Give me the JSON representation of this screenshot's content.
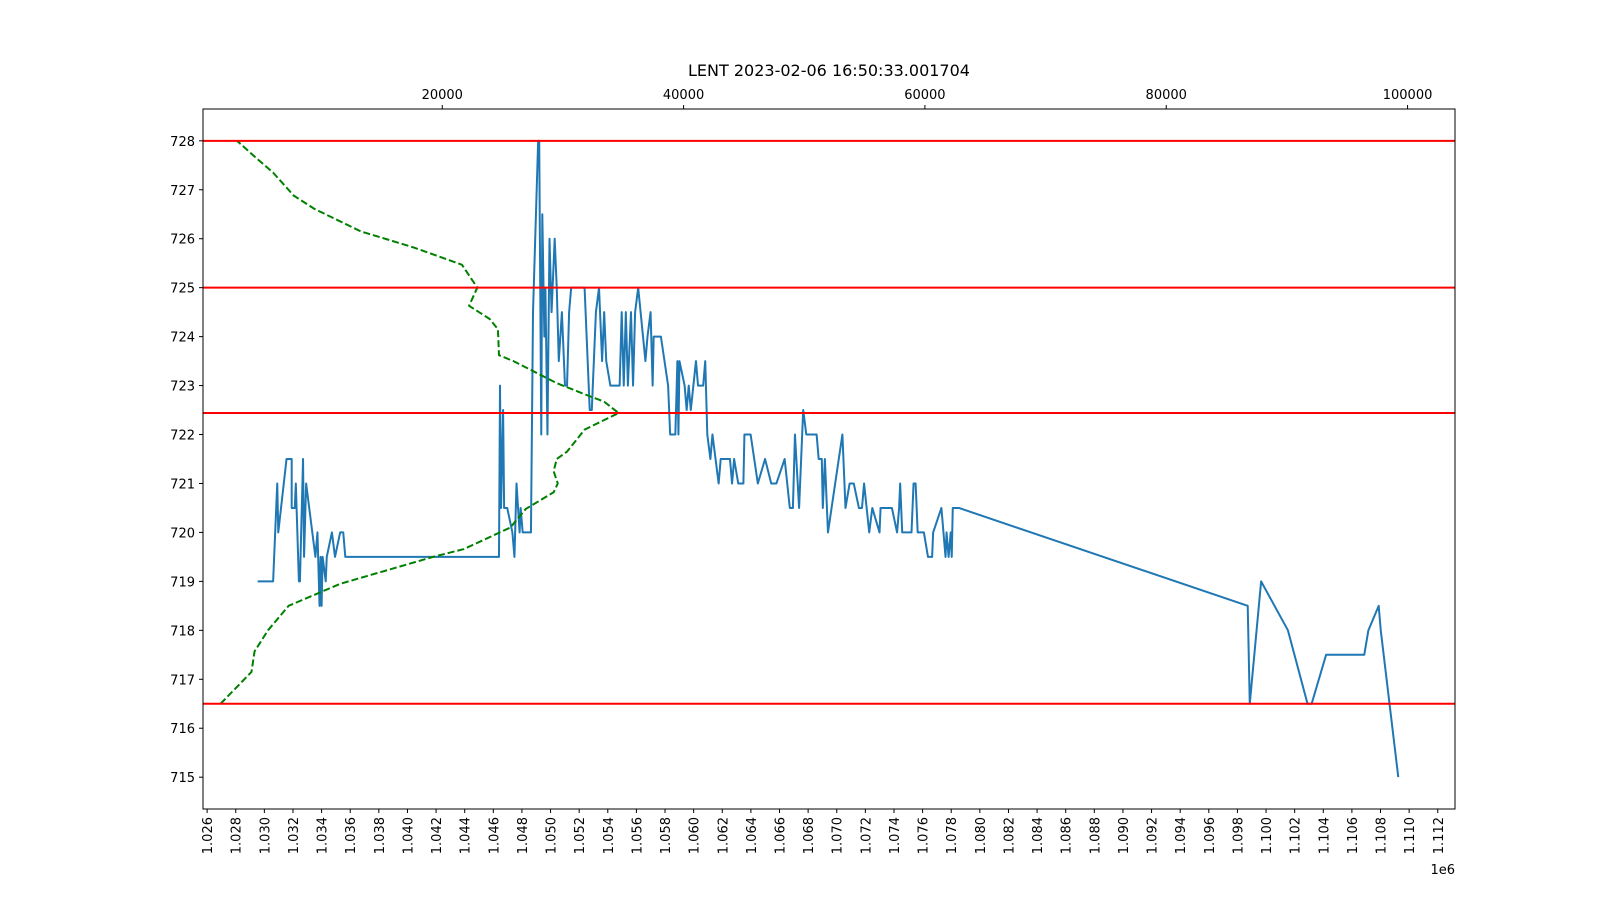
{
  "chart_data": {
    "type": "line",
    "title": "LENT 2023-02-06 16:50:33.001704",
    "x_offset_label": "1e6",
    "xlim": [
      1025712,
      1113205
    ],
    "xticks": [
      {
        "value": 1026000,
        "label": "1.026"
      },
      {
        "value": 1028000,
        "label": "1.028"
      },
      {
        "value": 1030000,
        "label": "1.030"
      },
      {
        "value": 1032000,
        "label": "1.032"
      },
      {
        "value": 1034000,
        "label": "1.034"
      },
      {
        "value": 1036000,
        "label": "1.036"
      },
      {
        "value": 1038000,
        "label": "1.038"
      },
      {
        "value": 1040000,
        "label": "1.040"
      },
      {
        "value": 1042000,
        "label": "1.042"
      },
      {
        "value": 1044000,
        "label": "1.044"
      },
      {
        "value": 1046000,
        "label": "1.046"
      },
      {
        "value": 1048000,
        "label": "1.048"
      },
      {
        "value": 1050000,
        "label": "1.050"
      },
      {
        "value": 1052000,
        "label": "1.052"
      },
      {
        "value": 1054000,
        "label": "1.054"
      },
      {
        "value": 1056000,
        "label": "1.056"
      },
      {
        "value": 1058000,
        "label": "1.058"
      },
      {
        "value": 1060000,
        "label": "1.060"
      },
      {
        "value": 1062000,
        "label": "1.062"
      },
      {
        "value": 1064000,
        "label": "1.064"
      },
      {
        "value": 1066000,
        "label": "1.066"
      },
      {
        "value": 1068000,
        "label": "1.068"
      },
      {
        "value": 1070000,
        "label": "1.070"
      },
      {
        "value": 1072000,
        "label": "1.072"
      },
      {
        "value": 1074000,
        "label": "1.074"
      },
      {
        "value": 1076000,
        "label": "1.076"
      },
      {
        "value": 1078000,
        "label": "1.078"
      },
      {
        "value": 1080000,
        "label": "1.080"
      },
      {
        "value": 1082000,
        "label": "1.082"
      },
      {
        "value": 1084000,
        "label": "1.084"
      },
      {
        "value": 1086000,
        "label": "1.086"
      },
      {
        "value": 1088000,
        "label": "1.088"
      },
      {
        "value": 1090000,
        "label": "1.090"
      },
      {
        "value": 1092000,
        "label": "1.092"
      },
      {
        "value": 1094000,
        "label": "1.094"
      },
      {
        "value": 1096000,
        "label": "1.096"
      },
      {
        "value": 1098000,
        "label": "1.098"
      },
      {
        "value": 1100000,
        "label": "1.100"
      },
      {
        "value": 1102000,
        "label": "1.102"
      },
      {
        "value": 1104000,
        "label": "1.104"
      },
      {
        "value": 1106000,
        "label": "1.106"
      },
      {
        "value": 1108000,
        "label": "1.108"
      },
      {
        "value": 1110000,
        "label": "1.110"
      },
      {
        "value": 1112000,
        "label": "1.112"
      }
    ],
    "x2lim": [
      171,
      103932
    ],
    "x2ticks": [
      20000,
      40000,
      60000,
      80000,
      100000
    ],
    "ylim": [
      714.35,
      728.65
    ],
    "yticks": [
      715,
      716,
      717,
      718,
      719,
      720,
      721,
      722,
      723,
      724,
      725,
      726,
      727,
      728
    ],
    "hlines": {
      "color": "#ff0000",
      "values": [
        728,
        725,
        722.44,
        716.5
      ]
    },
    "series": [
      {
        "color": "#1f77b4",
        "x": [
          1029531,
          1030612,
          1030901,
          1030973,
          1031549,
          1031910,
          1031910,
          1032126,
          1032198,
          1032414,
          1032486,
          1032703,
          1032775,
          1032919,
          1033567,
          1033711,
          1033856,
          1033928,
          1034000,
          1034072,
          1034288,
          1034360,
          1034720,
          1034937,
          1035297,
          1035513,
          1035657,
          1046396,
          1046468,
          1046540,
          1046684,
          1046756,
          1046972,
          1047333,
          1047477,
          1047621,
          1047837,
          1047909,
          1048053,
          1048630,
          1048774,
          1049134,
          1049207,
          1049351,
          1049423,
          1049567,
          1049639,
          1049783,
          1049927,
          1050071,
          1050288,
          1050432,
          1050576,
          1050792,
          1051008,
          1051152,
          1051297,
          1051441,
          1052378,
          1052594,
          1052738,
          1052882,
          1053170,
          1053387,
          1053603,
          1053747,
          1053891,
          1054179,
          1054828,
          1054972,
          1055116,
          1055260,
          1055405,
          1055621,
          1055765,
          1055909,
          1056125,
          1056630,
          1056774,
          1056990,
          1057134,
          1057206,
          1057711,
          1058215,
          1058359,
          1058720,
          1058864,
          1058936,
          1059008,
          1059368,
          1059513,
          1059657,
          1059801,
          1060161,
          1060305,
          1060666,
          1060810,
          1060954,
          1061170,
          1061314,
          1061747,
          1061891,
          1062539,
          1062684,
          1062828,
          1063116,
          1063476,
          1063548,
          1063981,
          1064485,
          1064990,
          1065422,
          1065783,
          1066359,
          1066720,
          1066936,
          1067080,
          1067368,
          1067656,
          1067873,
          1068593,
          1068738,
          1068954,
          1069026,
          1069170,
          1069386,
          1070395,
          1070611,
          1070900,
          1071188,
          1071548,
          1071764,
          1071909,
          1072269,
          1072485,
          1072990,
          1073062,
          1073854,
          1074215,
          1074359,
          1074431,
          1074575,
          1075224,
          1075368,
          1075512,
          1075656,
          1076089,
          1076377,
          1076665,
          1076737,
          1077314,
          1077602,
          1077674,
          1077818,
          1077962,
          1078035,
          1078107,
          1078539,
          1098719,
          1098863,
          1099656,
          1101529,
          1102899,
          1103187,
          1104196,
          1106863,
          1107151,
          1107872,
          1108016,
          1109241
        ],
        "values": [
          719,
          719,
          721,
          720,
          721.5,
          721.5,
          720.5,
          720.5,
          721,
          719,
          719,
          721.5,
          719.5,
          721,
          719.5,
          720,
          718.5,
          719.5,
          718.5,
          719.5,
          719,
          719.5,
          720,
          719.5,
          720,
          720,
          719.5,
          719.5,
          723,
          720.5,
          722.5,
          720.5,
          720.5,
          720,
          719.5,
          721,
          720,
          720.5,
          720,
          720,
          724.5,
          728,
          728,
          722,
          726.5,
          724,
          725,
          722,
          726,
          724.5,
          726,
          725,
          723.5,
          724.5,
          723,
          723,
          724.5,
          725,
          725,
          723.5,
          722.5,
          722.5,
          724.5,
          725,
          723.5,
          724.5,
          723.5,
          723,
          723,
          724.5,
          723,
          724.5,
          723,
          724.5,
          723,
          724.5,
          725,
          723.5,
          724,
          724.5,
          723,
          724,
          724,
          723,
          722,
          722,
          723.5,
          722,
          723.5,
          723,
          722.5,
          723,
          722.5,
          723.5,
          723,
          723,
          723.5,
          722,
          721.5,
          722,
          721,
          721.5,
          721.5,
          721,
          721.5,
          721,
          721,
          722,
          722,
          721,
          721.5,
          721,
          721,
          721.5,
          720.5,
          720.5,
          722,
          720.5,
          722.5,
          722,
          722,
          721.5,
          721.5,
          720.5,
          721.5,
          720,
          722,
          720.5,
          721,
          721,
          720.5,
          720.5,
          721,
          720,
          720.5,
          720,
          720.5,
          720.5,
          720,
          720.5,
          721,
          720,
          720,
          721,
          721,
          720,
          720,
          719.5,
          719.5,
          720,
          720.5,
          719.5,
          720,
          719.5,
          720,
          719.5,
          720.5,
          720.5,
          718.5,
          716.5,
          719,
          718,
          716.5,
          716.5,
          717.5,
          717.5,
          718,
          718.5,
          718,
          715
        ]
      },
      {
        "color": "#008000",
        "dashed": true,
        "axis": "x2",
        "x": [
          1624,
          4188,
          4444,
          5556,
          7265,
          11538,
          19231,
          21795,
          25641,
          26923,
          29231,
          29573,
          29231,
          29487,
          30342,
          31795,
          34615,
          33419,
          31624,
          29487,
          25897,
          24701,
          24615,
          23932,
          22222,
          22906,
          21624,
          17521,
          13248,
          9402,
          7692,
          5983,
          4530,
          2991
        ],
        "values": [
          716.5,
          717.15,
          717.57,
          718.0,
          718.5,
          718.95,
          719.5,
          719.66,
          720.1,
          720.48,
          720.82,
          721.0,
          721.25,
          721.5,
          721.65,
          722.1,
          722.44,
          722.67,
          722.84,
          723.05,
          723.5,
          723.62,
          724.15,
          724.36,
          724.63,
          725.0,
          725.47,
          725.83,
          726.15,
          726.61,
          726.88,
          727.35,
          727.66,
          728.0
        ]
      }
    ]
  }
}
